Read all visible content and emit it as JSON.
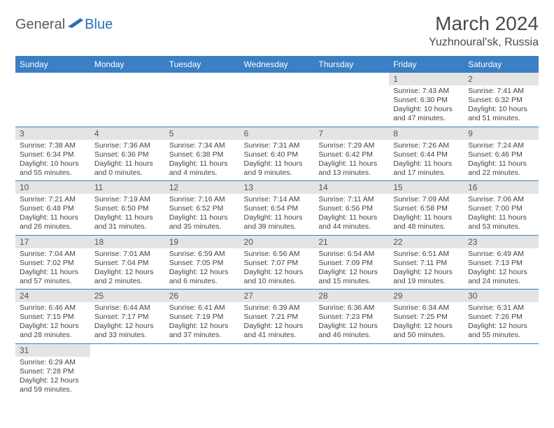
{
  "logo": {
    "part1": "General",
    "part2": "Blue"
  },
  "title": "March 2024",
  "location": "Yuzhnoural'sk, Russia",
  "colors": {
    "header_bg": "#3b7fc4",
    "header_text": "#ffffff",
    "daynum_bg": "#e4e4e4",
    "cell_border": "#3b7fc4",
    "body_text": "#444444",
    "logo_gray": "#5a5a5a",
    "logo_blue": "#2a6eb8"
  },
  "weekdays": [
    "Sunday",
    "Monday",
    "Tuesday",
    "Wednesday",
    "Thursday",
    "Friday",
    "Saturday"
  ],
  "weeks": [
    [
      null,
      null,
      null,
      null,
      null,
      {
        "n": "1",
        "sr": "Sunrise: 7:43 AM",
        "ss": "Sunset: 6:30 PM",
        "d1": "Daylight: 10 hours",
        "d2": "and 47 minutes."
      },
      {
        "n": "2",
        "sr": "Sunrise: 7:41 AM",
        "ss": "Sunset: 6:32 PM",
        "d1": "Daylight: 10 hours",
        "d2": "and 51 minutes."
      }
    ],
    [
      {
        "n": "3",
        "sr": "Sunrise: 7:38 AM",
        "ss": "Sunset: 6:34 PM",
        "d1": "Daylight: 10 hours",
        "d2": "and 55 minutes."
      },
      {
        "n": "4",
        "sr": "Sunrise: 7:36 AM",
        "ss": "Sunset: 6:36 PM",
        "d1": "Daylight: 11 hours",
        "d2": "and 0 minutes."
      },
      {
        "n": "5",
        "sr": "Sunrise: 7:34 AM",
        "ss": "Sunset: 6:38 PM",
        "d1": "Daylight: 11 hours",
        "d2": "and 4 minutes."
      },
      {
        "n": "6",
        "sr": "Sunrise: 7:31 AM",
        "ss": "Sunset: 6:40 PM",
        "d1": "Daylight: 11 hours",
        "d2": "and 9 minutes."
      },
      {
        "n": "7",
        "sr": "Sunrise: 7:29 AM",
        "ss": "Sunset: 6:42 PM",
        "d1": "Daylight: 11 hours",
        "d2": "and 13 minutes."
      },
      {
        "n": "8",
        "sr": "Sunrise: 7:26 AM",
        "ss": "Sunset: 6:44 PM",
        "d1": "Daylight: 11 hours",
        "d2": "and 17 minutes."
      },
      {
        "n": "9",
        "sr": "Sunrise: 7:24 AM",
        "ss": "Sunset: 6:46 PM",
        "d1": "Daylight: 11 hours",
        "d2": "and 22 minutes."
      }
    ],
    [
      {
        "n": "10",
        "sr": "Sunrise: 7:21 AM",
        "ss": "Sunset: 6:48 PM",
        "d1": "Daylight: 11 hours",
        "d2": "and 26 minutes."
      },
      {
        "n": "11",
        "sr": "Sunrise: 7:19 AM",
        "ss": "Sunset: 6:50 PM",
        "d1": "Daylight: 11 hours",
        "d2": "and 31 minutes."
      },
      {
        "n": "12",
        "sr": "Sunrise: 7:16 AM",
        "ss": "Sunset: 6:52 PM",
        "d1": "Daylight: 11 hours",
        "d2": "and 35 minutes."
      },
      {
        "n": "13",
        "sr": "Sunrise: 7:14 AM",
        "ss": "Sunset: 6:54 PM",
        "d1": "Daylight: 11 hours",
        "d2": "and 39 minutes."
      },
      {
        "n": "14",
        "sr": "Sunrise: 7:11 AM",
        "ss": "Sunset: 6:56 PM",
        "d1": "Daylight: 11 hours",
        "d2": "and 44 minutes."
      },
      {
        "n": "15",
        "sr": "Sunrise: 7:09 AM",
        "ss": "Sunset: 6:58 PM",
        "d1": "Daylight: 11 hours",
        "d2": "and 48 minutes."
      },
      {
        "n": "16",
        "sr": "Sunrise: 7:06 AM",
        "ss": "Sunset: 7:00 PM",
        "d1": "Daylight: 11 hours",
        "d2": "and 53 minutes."
      }
    ],
    [
      {
        "n": "17",
        "sr": "Sunrise: 7:04 AM",
        "ss": "Sunset: 7:02 PM",
        "d1": "Daylight: 11 hours",
        "d2": "and 57 minutes."
      },
      {
        "n": "18",
        "sr": "Sunrise: 7:01 AM",
        "ss": "Sunset: 7:04 PM",
        "d1": "Daylight: 12 hours",
        "d2": "and 2 minutes."
      },
      {
        "n": "19",
        "sr": "Sunrise: 6:59 AM",
        "ss": "Sunset: 7:05 PM",
        "d1": "Daylight: 12 hours",
        "d2": "and 6 minutes."
      },
      {
        "n": "20",
        "sr": "Sunrise: 6:56 AM",
        "ss": "Sunset: 7:07 PM",
        "d1": "Daylight: 12 hours",
        "d2": "and 10 minutes."
      },
      {
        "n": "21",
        "sr": "Sunrise: 6:54 AM",
        "ss": "Sunset: 7:09 PM",
        "d1": "Daylight: 12 hours",
        "d2": "and 15 minutes."
      },
      {
        "n": "22",
        "sr": "Sunrise: 6:51 AM",
        "ss": "Sunset: 7:11 PM",
        "d1": "Daylight: 12 hours",
        "d2": "and 19 minutes."
      },
      {
        "n": "23",
        "sr": "Sunrise: 6:49 AM",
        "ss": "Sunset: 7:13 PM",
        "d1": "Daylight: 12 hours",
        "d2": "and 24 minutes."
      }
    ],
    [
      {
        "n": "24",
        "sr": "Sunrise: 6:46 AM",
        "ss": "Sunset: 7:15 PM",
        "d1": "Daylight: 12 hours",
        "d2": "and 28 minutes."
      },
      {
        "n": "25",
        "sr": "Sunrise: 6:44 AM",
        "ss": "Sunset: 7:17 PM",
        "d1": "Daylight: 12 hours",
        "d2": "and 33 minutes."
      },
      {
        "n": "26",
        "sr": "Sunrise: 6:41 AM",
        "ss": "Sunset: 7:19 PM",
        "d1": "Daylight: 12 hours",
        "d2": "and 37 minutes."
      },
      {
        "n": "27",
        "sr": "Sunrise: 6:39 AM",
        "ss": "Sunset: 7:21 PM",
        "d1": "Daylight: 12 hours",
        "d2": "and 41 minutes."
      },
      {
        "n": "28",
        "sr": "Sunrise: 6:36 AM",
        "ss": "Sunset: 7:23 PM",
        "d1": "Daylight: 12 hours",
        "d2": "and 46 minutes."
      },
      {
        "n": "29",
        "sr": "Sunrise: 6:34 AM",
        "ss": "Sunset: 7:25 PM",
        "d1": "Daylight: 12 hours",
        "d2": "and 50 minutes."
      },
      {
        "n": "30",
        "sr": "Sunrise: 6:31 AM",
        "ss": "Sunset: 7:26 PM",
        "d1": "Daylight: 12 hours",
        "d2": "and 55 minutes."
      }
    ],
    [
      {
        "n": "31",
        "sr": "Sunrise: 6:29 AM",
        "ss": "Sunset: 7:28 PM",
        "d1": "Daylight: 12 hours",
        "d2": "and 59 minutes."
      },
      null,
      null,
      null,
      null,
      null,
      null
    ]
  ]
}
